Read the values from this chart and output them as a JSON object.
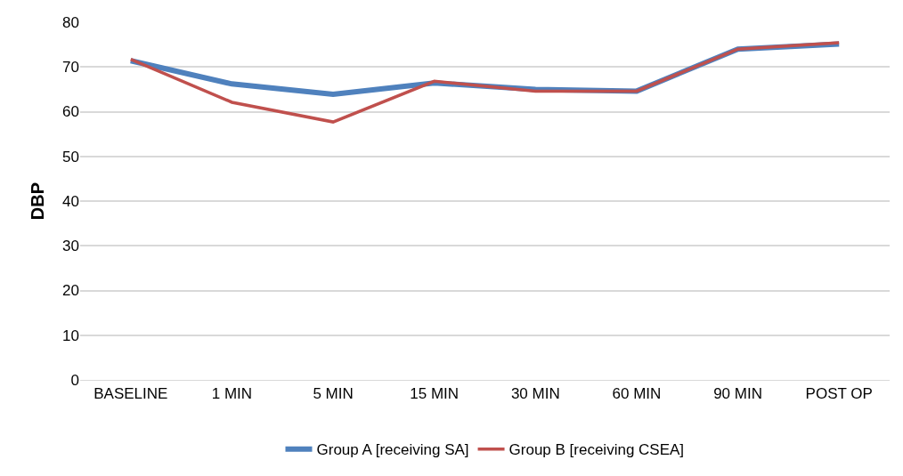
{
  "chart_data": {
    "type": "line",
    "ylabel": "DBP",
    "categories": [
      "BASELINE",
      "1 MIN",
      "5 MIN",
      "15 MIN",
      "30 MIN",
      "60 MIN",
      "90 MIN",
      "POST OP"
    ],
    "series": [
      {
        "name": "Group A [receiving SA]",
        "color": "#4f81bd",
        "values": [
          71.4,
          66.2,
          63.9,
          66.4,
          65.0,
          64.6,
          74.0,
          75.1
        ]
      },
      {
        "name": "Group B [receiving CSEA]",
        "color": "#c0504d",
        "values": [
          71.7,
          62.1,
          57.7,
          66.8,
          64.6,
          64.6,
          74.0,
          75.4
        ]
      }
    ],
    "ylim": [
      0,
      80
    ],
    "yticks": [
      0,
      10,
      20,
      30,
      40,
      50,
      60,
      70,
      80
    ],
    "grid": "y",
    "legend": "bottom",
    "marker": "none",
    "line_style": "solid"
  }
}
